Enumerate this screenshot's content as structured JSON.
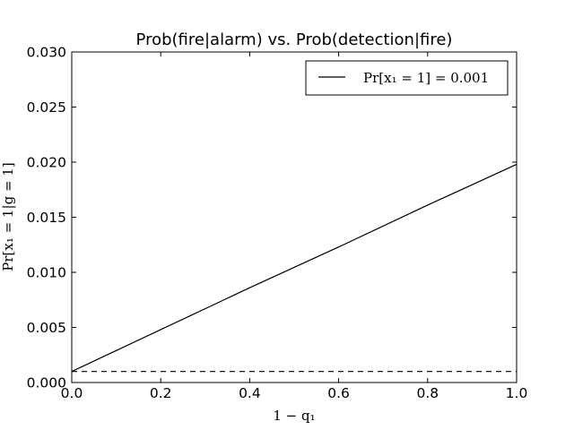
{
  "chart_data": {
    "type": "line",
    "title": "Prob(fire|alarm) vs. Prob(detection|fire)",
    "xlabel": "1 − q₁",
    "ylabel": "Pr[x₁ = 1|g = 1]",
    "xlim": [
      0.0,
      1.0
    ],
    "ylim": [
      0.0,
      0.03
    ],
    "x_ticks": [
      "0.0",
      "0.2",
      "0.4",
      "0.6",
      "0.8",
      "1.0"
    ],
    "y_ticks": [
      "0.000",
      "0.005",
      "0.010",
      "0.015",
      "0.020",
      "0.025",
      "0.030"
    ],
    "grid": false,
    "legend_position": "top-right",
    "series": [
      {
        "name": "Pr[x₁ = 1] = 0.001",
        "style": "solid",
        "color": "#000000",
        "x": [
          0.0,
          0.2,
          0.4,
          0.6,
          0.8,
          1.0
        ],
        "y": [
          0.001,
          0.0048,
          0.0086,
          0.0123,
          0.0161,
          0.0198
        ]
      },
      {
        "style": "dashed",
        "color": "#000000",
        "x": [
          0.0,
          1.0
        ],
        "y": [
          0.001,
          0.001
        ]
      }
    ]
  }
}
